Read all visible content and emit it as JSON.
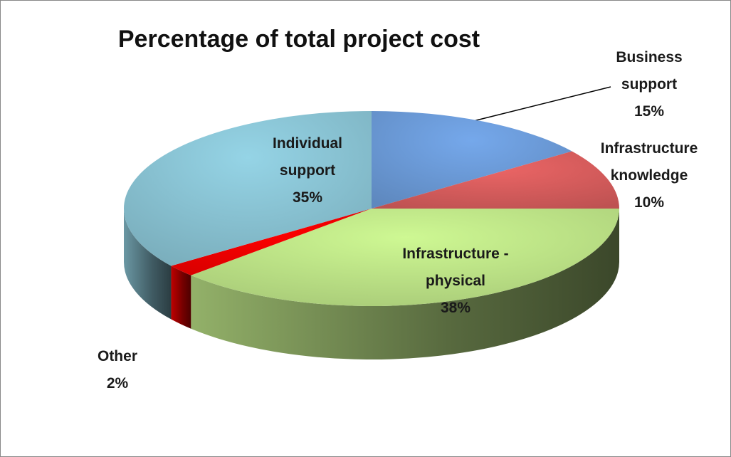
{
  "chart_data": {
    "type": "pie3d",
    "title": "Percentage of total project cost",
    "categories": [
      "Business support",
      "Infrastructure knowledge",
      "Infrastructure - physical",
      "Other",
      "Individual support"
    ],
    "values": [
      15,
      10,
      38,
      2,
      35
    ],
    "value_labels": [
      "15%",
      "10%",
      "38%",
      "2%",
      "35%"
    ],
    "colors": [
      "#6fa0e0",
      "#e06060",
      "#c4ec8c",
      "#ff0000",
      "#8ecadb"
    ]
  }
}
